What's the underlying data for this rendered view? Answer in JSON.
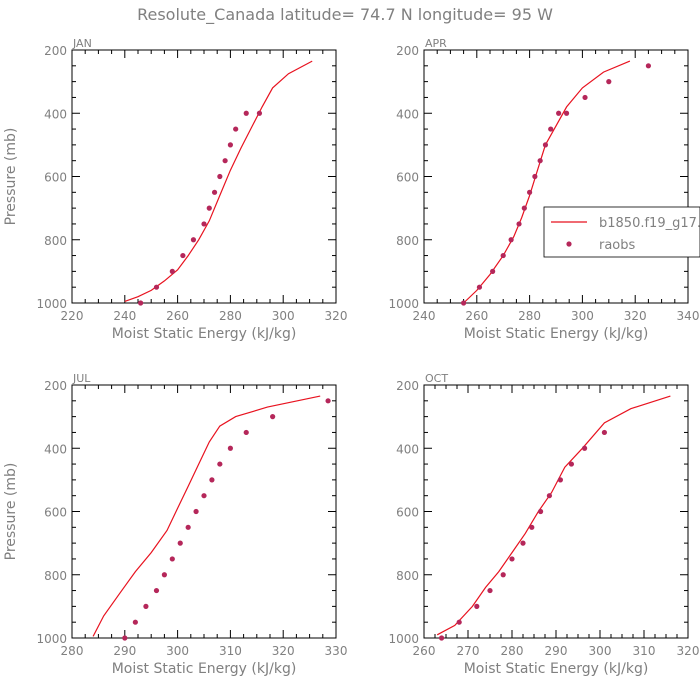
{
  "figure": {
    "title": "Resolute_Canada  latitude= 74.7 N longitude= 95 W"
  },
  "legend": {
    "entries": [
      {
        "label": "b1850.f19_g17.",
        "kind": "line",
        "color": "#e8121f"
      },
      {
        "label": "raobs",
        "kind": "marker",
        "color": "#b5275a"
      }
    ]
  },
  "colors": {
    "model_line": "#e8121f",
    "obs_marker": "#b5275a",
    "axis": "#000000",
    "text": "#808080"
  },
  "chart_data": [
    {
      "type": "line",
      "panel": "JAN",
      "xlabel": "Moist Static Energy (kJ/kg)",
      "ylabel": "Pressure (mb)",
      "xlim": [
        220,
        320
      ],
      "ylim": [
        1000,
        200
      ],
      "y_inverted": true,
      "xticks": [
        220,
        240,
        260,
        280,
        300,
        320
      ],
      "yticks": [
        200,
        400,
        600,
        800,
        1000
      ],
      "series": [
        {
          "name": "b1850.f19_g17.",
          "kind": "line",
          "x": [
            240,
            245,
            250,
            255,
            260,
            264,
            268,
            272,
            276,
            280,
            284,
            288,
            292,
            296,
            302,
            311
          ],
          "y": [
            995,
            980,
            960,
            930,
            895,
            850,
            800,
            740,
            660,
            580,
            510,
            445,
            380,
            320,
            275,
            235
          ]
        },
        {
          "name": "raobs",
          "kind": "scatter",
          "x": [
            246,
            252,
            258,
            262,
            266,
            270,
            272,
            274,
            276,
            278,
            280,
            282,
            286,
            291
          ],
          "y": [
            1000,
            950,
            900,
            850,
            800,
            750,
            700,
            650,
            600,
            550,
            500,
            450,
            400,
            400
          ]
        }
      ]
    },
    {
      "type": "line",
      "panel": "APR",
      "xlabel": "Moist Static Energy (kJ/kg)",
      "ylabel": "",
      "xlim": [
        240,
        340
      ],
      "ylim": [
        1000,
        200
      ],
      "y_inverted": true,
      "xticks": [
        240,
        260,
        280,
        300,
        320,
        340
      ],
      "yticks": [
        200,
        400,
        600,
        800,
        1000
      ],
      "series": [
        {
          "name": "b1850.f19_g17.",
          "kind": "line",
          "x": [
            255,
            260,
            265,
            270,
            274,
            277,
            280,
            283,
            286,
            290,
            294,
            300,
            308,
            318
          ],
          "y": [
            1000,
            960,
            910,
            850,
            790,
            730,
            660,
            580,
            500,
            440,
            380,
            320,
            270,
            235
          ]
        },
        {
          "name": "raobs",
          "kind": "scatter",
          "x": [
            255,
            261,
            266,
            270,
            273,
            276,
            278,
            280,
            282,
            284,
            286,
            288,
            291,
            294,
            301,
            310,
            325
          ],
          "y": [
            1000,
            950,
            900,
            850,
            800,
            750,
            700,
            650,
            600,
            550,
            500,
            450,
            400,
            400,
            350,
            300,
            250
          ]
        }
      ]
    },
    {
      "type": "line",
      "panel": "JUL",
      "xlabel": "Moist Static Energy (kJ/kg)",
      "ylabel": "Pressure (mb)",
      "xlim": [
        280,
        330
      ],
      "ylim": [
        1000,
        200
      ],
      "y_inverted": true,
      "xticks": [
        280,
        290,
        300,
        310,
        320,
        330
      ],
      "yticks": [
        200,
        400,
        600,
        800,
        1000
      ],
      "series": [
        {
          "name": "b1850.f19_g17.",
          "kind": "line",
          "x": [
            284,
            286,
            289,
            292,
            295,
            298,
            300,
            302,
            304,
            306,
            308,
            311,
            317,
            327
          ],
          "y": [
            995,
            930,
            860,
            790,
            730,
            660,
            590,
            520,
            450,
            380,
            330,
            300,
            270,
            235
          ]
        },
        {
          "name": "raobs",
          "kind": "scatter",
          "x": [
            290,
            292,
            294,
            296,
            297.5,
            299,
            300.5,
            302,
            303.5,
            305,
            306.5,
            308,
            310,
            313,
            318,
            328.5
          ],
          "y": [
            1000,
            950,
            900,
            850,
            800,
            750,
            700,
            650,
            600,
            550,
            500,
            450,
            400,
            350,
            300,
            250
          ]
        }
      ]
    },
    {
      "type": "line",
      "panel": "OCT",
      "xlabel": "Moist Static Energy (kJ/kg)",
      "ylabel": "",
      "xlim": [
        260,
        320
      ],
      "ylim": [
        1000,
        200
      ],
      "y_inverted": true,
      "xticks": [
        260,
        270,
        280,
        290,
        300,
        310,
        320
      ],
      "yticks": [
        200,
        400,
        600,
        800,
        1000
      ],
      "series": [
        {
          "name": "b1850.f19_g17.",
          "kind": "line",
          "x": [
            263,
            267,
            271,
            274,
            277,
            280,
            283,
            286,
            289,
            292,
            296,
            301,
            307,
            316
          ],
          "y": [
            990,
            960,
            900,
            840,
            790,
            730,
            670,
            600,
            540,
            460,
            400,
            320,
            275,
            235
          ]
        },
        {
          "name": "raobs",
          "kind": "scatter",
          "x": [
            264,
            268,
            272,
            275,
            278,
            280,
            282.5,
            284.5,
            286.5,
            288.5,
            291,
            293.5,
            296.5,
            301
          ],
          "y": [
            1000,
            950,
            900,
            850,
            800,
            750,
            700,
            650,
            600,
            550,
            500,
            450,
            400,
            350
          ]
        }
      ]
    }
  ]
}
